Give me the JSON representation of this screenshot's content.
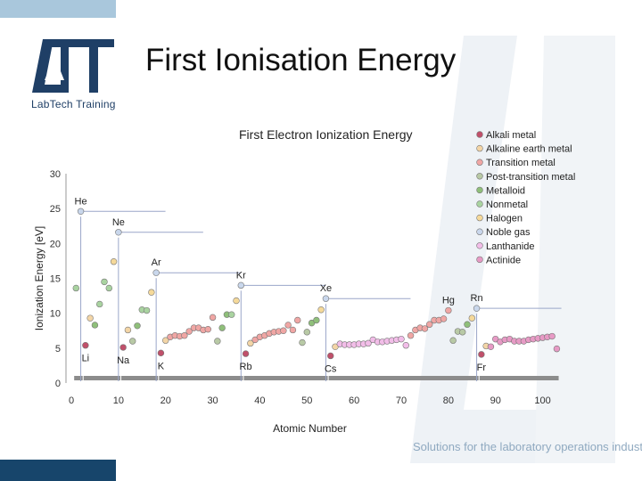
{
  "slide": {
    "title": "First Ionisation Energy",
    "logo_text": "LabTech Training",
    "tagline": "Solutions for the laboratory operations industry"
  },
  "colors": {
    "top_bar": "#a9c7dc",
    "bottom_bar": "#17456b",
    "logo": "#1f3f66",
    "watermark": "#e9eef3"
  },
  "chart_data": {
    "type": "scatter",
    "title": "First Electron Ionization Energy",
    "xlabel": "Atomic Number",
    "ylabel": "Ionization Energy [eV]",
    "xlim": [
      0,
      105
    ],
    "ylim": [
      0,
      30
    ],
    "xticks": [
      0,
      10,
      20,
      30,
      40,
      50,
      60,
      70,
      80,
      90,
      100
    ],
    "yticks": [
      0,
      5,
      10,
      15,
      20,
      25,
      30
    ],
    "grid": false,
    "legend_position": "right",
    "categories": [
      {
        "name": "Alkali metal",
        "color": "#c0506a"
      },
      {
        "name": "Alkaline earth metal",
        "color": "#f3d5a6"
      },
      {
        "name": "Transition metal",
        "color": "#f0a6a4"
      },
      {
        "name": "Post-transition metal",
        "color": "#b8c9a5"
      },
      {
        "name": "Metalloid",
        "color": "#8fbf7a"
      },
      {
        "name": "Nonmetal",
        "color": "#a9d3a0"
      },
      {
        "name": "Halogen",
        "color": "#f5d99a"
      },
      {
        "name": "Noble gas",
        "color": "#c9d7ec"
      },
      {
        "name": "Lanthanide",
        "color": "#f2bde8"
      },
      {
        "name": "Actinide",
        "color": "#e79ac5"
      }
    ],
    "elements": [
      {
        "z": 1,
        "ie": 13.6,
        "cat": 5
      },
      {
        "z": 2,
        "ie": 24.6,
        "cat": 7,
        "label": "He"
      },
      {
        "z": 3,
        "ie": 5.4,
        "cat": 0,
        "label": "Li"
      },
      {
        "z": 4,
        "ie": 9.3,
        "cat": 1
      },
      {
        "z": 5,
        "ie": 8.3,
        "cat": 4
      },
      {
        "z": 6,
        "ie": 11.3,
        "cat": 5
      },
      {
        "z": 7,
        "ie": 14.5,
        "cat": 5
      },
      {
        "z": 8,
        "ie": 13.6,
        "cat": 5
      },
      {
        "z": 9,
        "ie": 17.4,
        "cat": 6
      },
      {
        "z": 10,
        "ie": 21.6,
        "cat": 7,
        "label": "Ne"
      },
      {
        "z": 11,
        "ie": 5.1,
        "cat": 0,
        "label": "Na"
      },
      {
        "z": 12,
        "ie": 7.6,
        "cat": 1
      },
      {
        "z": 13,
        "ie": 6.0,
        "cat": 3
      },
      {
        "z": 14,
        "ie": 8.2,
        "cat": 4
      },
      {
        "z": 15,
        "ie": 10.5,
        "cat": 5
      },
      {
        "z": 16,
        "ie": 10.4,
        "cat": 5
      },
      {
        "z": 17,
        "ie": 13.0,
        "cat": 6
      },
      {
        "z": 18,
        "ie": 15.8,
        "cat": 7,
        "label": "Ar"
      },
      {
        "z": 19,
        "ie": 4.3,
        "cat": 0,
        "label": "K"
      },
      {
        "z": 20,
        "ie": 6.1,
        "cat": 1
      },
      {
        "z": 21,
        "ie": 6.6,
        "cat": 2
      },
      {
        "z": 22,
        "ie": 6.8,
        "cat": 2
      },
      {
        "z": 23,
        "ie": 6.7,
        "cat": 2
      },
      {
        "z": 24,
        "ie": 6.8,
        "cat": 2
      },
      {
        "z": 25,
        "ie": 7.4,
        "cat": 2
      },
      {
        "z": 26,
        "ie": 7.9,
        "cat": 2
      },
      {
        "z": 27,
        "ie": 7.9,
        "cat": 2
      },
      {
        "z": 28,
        "ie": 7.6,
        "cat": 2
      },
      {
        "z": 29,
        "ie": 7.7,
        "cat": 2
      },
      {
        "z": 30,
        "ie": 9.4,
        "cat": 2
      },
      {
        "z": 31,
        "ie": 6.0,
        "cat": 3
      },
      {
        "z": 32,
        "ie": 7.9,
        "cat": 4
      },
      {
        "z": 33,
        "ie": 9.8,
        "cat": 4
      },
      {
        "z": 34,
        "ie": 9.8,
        "cat": 5
      },
      {
        "z": 35,
        "ie": 11.8,
        "cat": 6
      },
      {
        "z": 36,
        "ie": 14.0,
        "cat": 7,
        "label": "Kr"
      },
      {
        "z": 37,
        "ie": 4.2,
        "cat": 0,
        "label": "Rb"
      },
      {
        "z": 38,
        "ie": 5.7,
        "cat": 1
      },
      {
        "z": 39,
        "ie": 6.2,
        "cat": 2
      },
      {
        "z": 40,
        "ie": 6.6,
        "cat": 2
      },
      {
        "z": 41,
        "ie": 6.8,
        "cat": 2
      },
      {
        "z": 42,
        "ie": 7.1,
        "cat": 2
      },
      {
        "z": 43,
        "ie": 7.3,
        "cat": 2
      },
      {
        "z": 44,
        "ie": 7.4,
        "cat": 2
      },
      {
        "z": 45,
        "ie": 7.5,
        "cat": 2
      },
      {
        "z": 46,
        "ie": 8.3,
        "cat": 2
      },
      {
        "z": 47,
        "ie": 7.6,
        "cat": 2
      },
      {
        "z": 48,
        "ie": 9.0,
        "cat": 2
      },
      {
        "z": 49,
        "ie": 5.8,
        "cat": 3
      },
      {
        "z": 50,
        "ie": 7.3,
        "cat": 3
      },
      {
        "z": 51,
        "ie": 8.6,
        "cat": 4
      },
      {
        "z": 52,
        "ie": 9.0,
        "cat": 4
      },
      {
        "z": 53,
        "ie": 10.5,
        "cat": 6
      },
      {
        "z": 54,
        "ie": 12.1,
        "cat": 7,
        "label": "Xe"
      },
      {
        "z": 55,
        "ie": 3.9,
        "cat": 0,
        "label": "Cs"
      },
      {
        "z": 56,
        "ie": 5.2,
        "cat": 1
      },
      {
        "z": 57,
        "ie": 5.6,
        "cat": 8
      },
      {
        "z": 58,
        "ie": 5.5,
        "cat": 8
      },
      {
        "z": 59,
        "ie": 5.5,
        "cat": 8
      },
      {
        "z": 60,
        "ie": 5.5,
        "cat": 8
      },
      {
        "z": 61,
        "ie": 5.6,
        "cat": 8
      },
      {
        "z": 62,
        "ie": 5.6,
        "cat": 8
      },
      {
        "z": 63,
        "ie": 5.7,
        "cat": 8
      },
      {
        "z": 64,
        "ie": 6.2,
        "cat": 8
      },
      {
        "z": 65,
        "ie": 5.9,
        "cat": 8
      },
      {
        "z": 66,
        "ie": 5.9,
        "cat": 8
      },
      {
        "z": 67,
        "ie": 6.0,
        "cat": 8
      },
      {
        "z": 68,
        "ie": 6.1,
        "cat": 8
      },
      {
        "z": 69,
        "ie": 6.2,
        "cat": 8
      },
      {
        "z": 70,
        "ie": 6.3,
        "cat": 8
      },
      {
        "z": 71,
        "ie": 5.4,
        "cat": 8
      },
      {
        "z": 72,
        "ie": 6.8,
        "cat": 2
      },
      {
        "z": 73,
        "ie": 7.6,
        "cat": 2
      },
      {
        "z": 74,
        "ie": 7.9,
        "cat": 2
      },
      {
        "z": 75,
        "ie": 7.8,
        "cat": 2
      },
      {
        "z": 76,
        "ie": 8.4,
        "cat": 2
      },
      {
        "z": 77,
        "ie": 9.0,
        "cat": 2
      },
      {
        "z": 78,
        "ie": 9.0,
        "cat": 2
      },
      {
        "z": 79,
        "ie": 9.2,
        "cat": 2
      },
      {
        "z": 80,
        "ie": 10.4,
        "cat": 2,
        "label": "Hg"
      },
      {
        "z": 81,
        "ie": 6.1,
        "cat": 3
      },
      {
        "z": 82,
        "ie": 7.4,
        "cat": 3
      },
      {
        "z": 83,
        "ie": 7.3,
        "cat": 3
      },
      {
        "z": 84,
        "ie": 8.4,
        "cat": 4
      },
      {
        "z": 85,
        "ie": 9.3,
        "cat": 6
      },
      {
        "z": 86,
        "ie": 10.7,
        "cat": 7,
        "label": "Rn"
      },
      {
        "z": 87,
        "ie": 4.1,
        "cat": 0,
        "label": "Fr"
      },
      {
        "z": 88,
        "ie": 5.3,
        "cat": 1
      },
      {
        "z": 89,
        "ie": 5.2,
        "cat": 9
      },
      {
        "z": 90,
        "ie": 6.3,
        "cat": 9
      },
      {
        "z": 91,
        "ie": 5.9,
        "cat": 9
      },
      {
        "z": 92,
        "ie": 6.2,
        "cat": 9
      },
      {
        "z": 93,
        "ie": 6.3,
        "cat": 9
      },
      {
        "z": 94,
        "ie": 6.0,
        "cat": 9
      },
      {
        "z": 95,
        "ie": 6.0,
        "cat": 9
      },
      {
        "z": 96,
        "ie": 6.0,
        "cat": 9
      },
      {
        "z": 97,
        "ie": 6.2,
        "cat": 9
      },
      {
        "z": 98,
        "ie": 6.3,
        "cat": 9
      },
      {
        "z": 99,
        "ie": 6.4,
        "cat": 9
      },
      {
        "z": 100,
        "ie": 6.5,
        "cat": 9
      },
      {
        "z": 101,
        "ie": 6.6,
        "cat": 9
      },
      {
        "z": 102,
        "ie": 6.7,
        "cat": 9
      },
      {
        "z": 103,
        "ie": 4.9,
        "cat": 9
      }
    ],
    "period_ranges": [
      [
        1,
        2
      ],
      [
        3,
        10
      ],
      [
        11,
        18
      ],
      [
        19,
        36
      ],
      [
        37,
        54
      ],
      [
        55,
        86
      ],
      [
        87,
        103
      ]
    ]
  }
}
